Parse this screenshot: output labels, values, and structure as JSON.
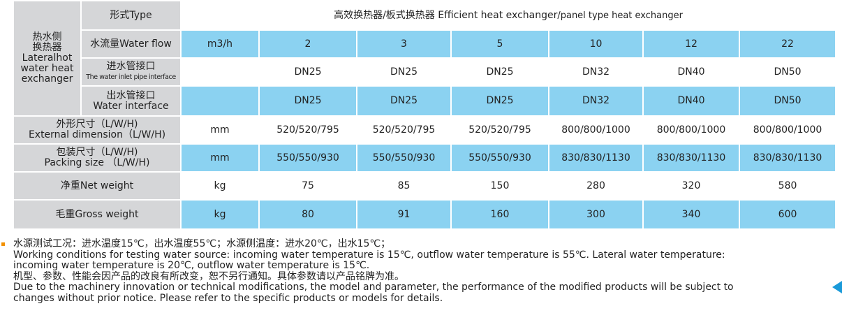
{
  "table": {
    "type_label": "形式Type",
    "title_main": "高效换热器/板式换热器 Efficient heat exchanger",
    "title_tail": "/panel type heat exchanger",
    "side_label": [
      "热水侧",
      "换热器",
      "Lateralhot",
      "water heat",
      "exchanger"
    ],
    "rows": [
      {
        "label": [
          "水流量Water flow"
        ],
        "unit": "m3/h",
        "values": [
          2,
          3,
          5,
          10,
          12,
          22
        ]
      },
      {
        "label": [
          "进水管接口",
          "The water inlet pipe interface"
        ],
        "values": [
          "DN25",
          "DN25",
          "DN25",
          "DN32",
          "DN40",
          "DN50"
        ]
      },
      {
        "label": [
          "出水管接口",
          "Water interface"
        ],
        "values": [
          "DN25",
          "DN25",
          "DN25",
          "DN32",
          "DN40",
          "DN50"
        ]
      },
      {
        "label": [
          "外形尺寸（L/W/H)",
          "External dimension（L/W/H)"
        ],
        "unit": "mm",
        "values": [
          "520/520/795",
          "520/520/795",
          "520/520/795",
          "800/800/1000",
          "800/800/1000",
          "800/800/1000"
        ]
      },
      {
        "label": [
          "包装尺寸（L/W/H)",
          "Packing size （L/W/H)"
        ],
        "unit": "mm",
        "values": [
          "550/550/930",
          "550/550/930",
          "550/550/930",
          "830/830/1130",
          "830/830/1130",
          "830/830/1130"
        ]
      },
      {
        "label": [
          "净重Net weight"
        ],
        "unit": "kg",
        "values": [
          75,
          85,
          150,
          280,
          320,
          580
        ]
      },
      {
        "label": [
          "毛重Gross weight"
        ],
        "unit": "kg",
        "values": [
          80,
          91,
          160,
          300,
          340,
          600
        ]
      }
    ]
  },
  "notes": [
    {
      "zh": "水源测试工况：进水温度15℃，出水温度55℃；水源侧温度：进水20℃，出水15℃；",
      "en": "Working conditions for testing water source: incoming water temperature is 15℃, outflow water temperature is 55℃. Lateral water temperature: incoming water temperature is 20℃, outflow water temperature is 15℃."
    },
    {
      "zh": "机型、参数、性能会因产品的改良有所改变，恕不另行通知。具体参数请以产品铭牌为准。",
      "en": "Due to the machinery innovation or technical modifications, the model and parameter, the performance of the modified products will be subject to changes without prior notice. Please refer to the specific products or models for details."
    }
  ]
}
